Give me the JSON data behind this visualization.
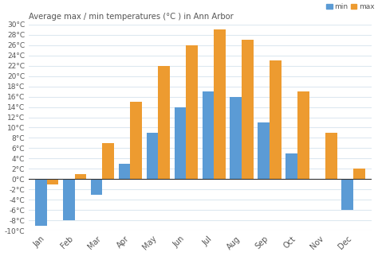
{
  "title": "Average max / min temperatures (°C ) in Ann Arbor",
  "months": [
    "Jan",
    "Feb",
    "Mar",
    "Apr",
    "May",
    "Jun",
    "Jul",
    "Aug",
    "Sep",
    "Oct",
    "Nov",
    "Dec"
  ],
  "min_temps": [
    -9,
    -8,
    -3,
    3,
    9,
    14,
    17,
    16,
    11,
    5,
    0,
    -6
  ],
  "max_temps": [
    -1,
    1,
    7,
    15,
    22,
    26,
    29,
    27,
    23,
    17,
    9,
    2
  ],
  "min_color": "#5b9bd5",
  "max_color": "#ed9b30",
  "bg_color": "#ffffff",
  "grid_color": "#dde8f0",
  "yticks": [
    -10,
    -8,
    -6,
    -4,
    -2,
    0,
    2,
    4,
    6,
    8,
    10,
    12,
    14,
    16,
    18,
    20,
    22,
    24,
    26,
    28,
    30
  ],
  "ylim": [
    -10,
    30
  ],
  "legend_min": "min",
  "legend_max": "max"
}
